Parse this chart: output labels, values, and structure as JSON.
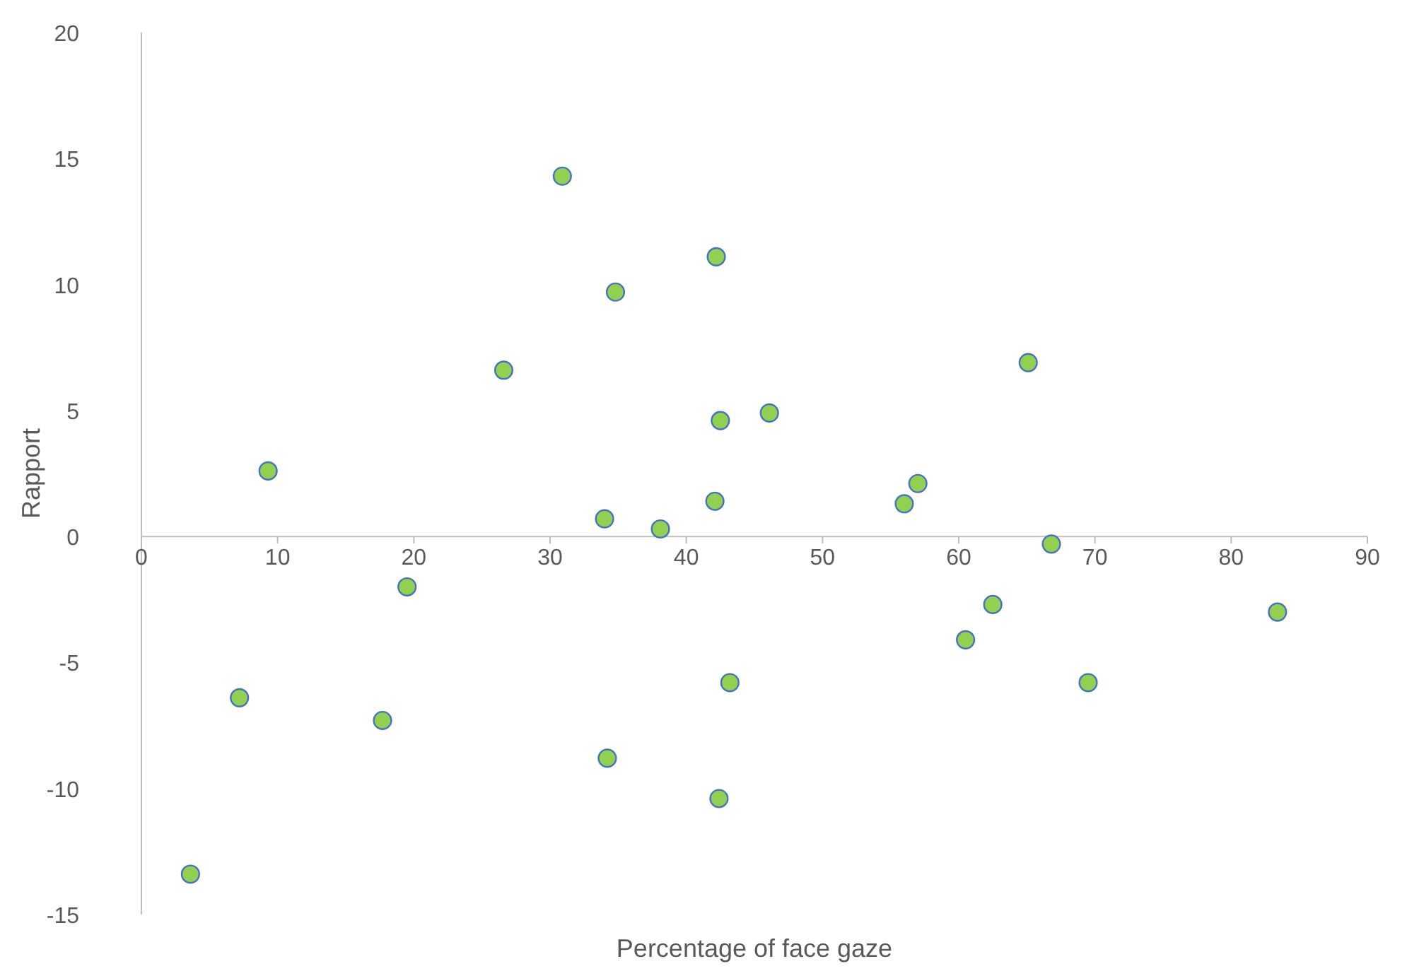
{
  "chart_data": {
    "type": "scatter",
    "xlabel": "Percentage of face gaze",
    "ylabel": "Rapport",
    "x": [
      3.6,
      7.2,
      9.3,
      17.7,
      19.5,
      26.6,
      30.9,
      34.0,
      34.2,
      34.8,
      38.1,
      42.1,
      42.2,
      42.4,
      42.5,
      43.2,
      46.1,
      56.0,
      57.0,
      60.5,
      62.5,
      65.1,
      66.8,
      69.5,
      83.4
    ],
    "values": [
      -13.4,
      -6.4,
      2.6,
      -7.3,
      -2.0,
      6.6,
      14.3,
      0.7,
      -8.8,
      9.7,
      0.3,
      1.4,
      11.1,
      -10.4,
      4.6,
      -5.8,
      4.9,
      1.3,
      2.1,
      -4.1,
      -2.7,
      6.9,
      -0.3,
      -5.8,
      -3.0
    ],
    "color": "#92d050",
    "marker": "circle",
    "grid": false,
    "xlim": [
      0,
      90
    ],
    "xticks": [
      0,
      10,
      20,
      30,
      40,
      50,
      60,
      70,
      80,
      90
    ],
    "ylim": [
      -15,
      20
    ],
    "yticks": [
      -15,
      -10,
      -5,
      0,
      5,
      10,
      15,
      20
    ]
  }
}
